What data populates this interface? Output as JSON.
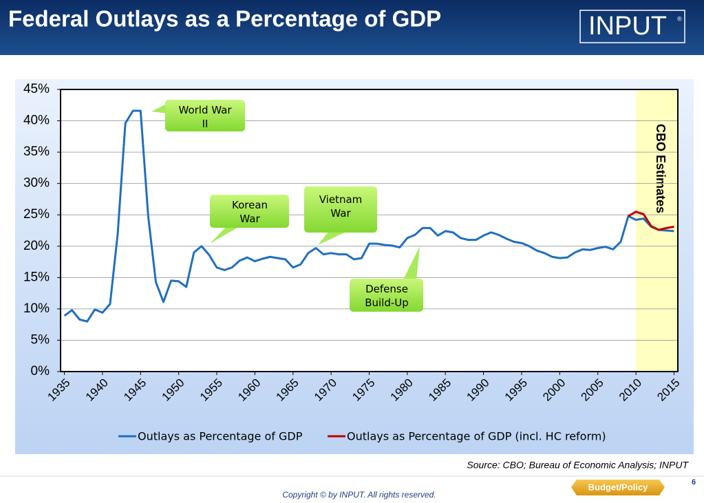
{
  "title": "Federal Outlays as a Percentage of GDP",
  "logo": "INPUT",
  "logo_mark": "®",
  "source": "Source: CBO; Bureau of Economic Analysis; INPUT",
  "copyright": "Copyright © by INPUT. All rights reserved.",
  "button": "Budget/Policy",
  "page_number": "6",
  "chart_data": {
    "type": "line",
    "xlim": [
      1934.5,
      2015.5
    ],
    "xticks": [
      1935,
      1940,
      1945,
      1950,
      1955,
      1960,
      1965,
      1970,
      1975,
      1980,
      1985,
      1990,
      1995,
      2000,
      2005,
      2010,
      2015
    ],
    "ylim": [
      0,
      45
    ],
    "yticks": [
      {
        "value": 0,
        "label": "0%"
      },
      {
        "value": 5,
        "label": "5%"
      },
      {
        "value": 10,
        "label": "10%"
      },
      {
        "value": 15,
        "label": "15%"
      },
      {
        "value": 20,
        "label": "20%"
      },
      {
        "value": 25,
        "label": "25%"
      },
      {
        "value": 30,
        "label": "30%"
      },
      {
        "value": 35,
        "label": "35%"
      },
      {
        "value": 40,
        "label": "40%"
      },
      {
        "value": 45,
        "label": "45%"
      }
    ],
    "grid": true,
    "legend": "bottom",
    "shaded_region": {
      "label": "CBO Estimates",
      "from": 2010,
      "to": 2015.5,
      "color": "#ffffc0"
    },
    "annotations": [
      {
        "text": "World War II"
      },
      {
        "text": "Korean War"
      },
      {
        "text": "Vietnam War"
      },
      {
        "text": "Defense Build-Up"
      }
    ],
    "series": [
      {
        "name": "Outlays as Percentage of GDP",
        "color": "#1f6fc0",
        "x": [
          1935,
          1936,
          1937,
          1938,
          1939,
          1940,
          1941,
          1942,
          1943,
          1944,
          1945,
          1946,
          1947,
          1948,
          1949,
          1950,
          1951,
          1952,
          1953,
          1954,
          1955,
          1956,
          1957,
          1958,
          1959,
          1960,
          1961,
          1962,
          1963,
          1964,
          1965,
          1966,
          1967,
          1968,
          1969,
          1970,
          1971,
          1972,
          1973,
          1974,
          1975,
          1976,
          1977,
          1978,
          1979,
          1980,
          1981,
          1982,
          1983,
          1984,
          1985,
          1986,
          1987,
          1988,
          1989,
          1990,
          1991,
          1992,
          1993,
          1994,
          1995,
          1996,
          1997,
          1998,
          1999,
          2000,
          2001,
          2002,
          2003,
          2004,
          2005,
          2006,
          2007,
          2008,
          2009,
          2010,
          2011,
          2012,
          2013,
          2014,
          2015
        ],
        "values": [
          8.9,
          9.8,
          8.3,
          8.0,
          9.9,
          9.4,
          10.8,
          22.0,
          39.6,
          41.6,
          41.6,
          24.8,
          14.3,
          11.1,
          14.5,
          14.4,
          13.5,
          19.0,
          20.0,
          18.6,
          16.6,
          16.2,
          16.6,
          17.7,
          18.2,
          17.6,
          18.0,
          18.3,
          18.1,
          17.9,
          16.6,
          17.1,
          18.9,
          19.7,
          18.7,
          18.9,
          18.7,
          18.7,
          17.9,
          18.1,
          20.4,
          20.4,
          20.2,
          20.1,
          19.8,
          21.3,
          21.8,
          22.9,
          22.9,
          21.7,
          22.4,
          22.2,
          21.3,
          21.0,
          21.0,
          21.7,
          22.2,
          21.8,
          21.2,
          20.7,
          20.5,
          20.0,
          19.3,
          18.9,
          18.3,
          18.1,
          18.2,
          19.0,
          19.5,
          19.4,
          19.7,
          19.9,
          19.5,
          20.7,
          24.8,
          24.2,
          24.4,
          23.1,
          22.6,
          22.5,
          22.4
        ]
      },
      {
        "name": "Outlays as Percentage of GDP (incl. HC reform)",
        "color": "#c00000",
        "x": [
          2009,
          2010,
          2011,
          2012,
          2013,
          2014,
          2015
        ],
        "values": [
          24.8,
          25.5,
          25.1,
          23.2,
          22.6,
          22.9,
          23.1
        ]
      }
    ]
  }
}
